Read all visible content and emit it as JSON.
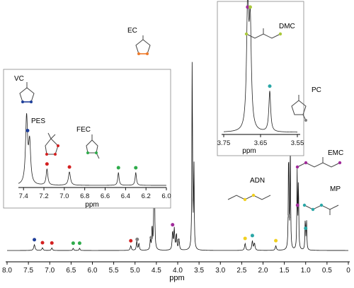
{
  "chart_data": {
    "type": "line",
    "title": "",
    "xlabel": "ppm",
    "xlim": [
      8.0,
      0.0
    ],
    "x_ticks": [
      "8.0",
      "7.5",
      "7.0",
      "6.5",
      "6.0",
      "5.5",
      "5.0",
      "4.5",
      "4.0",
      "3.5",
      "3.0",
      "2.5",
      "2.0",
      "1.5",
      "1.0",
      "0.5",
      "0"
    ],
    "peaks": [
      {
        "ppm": 7.36,
        "height": 0.025,
        "width": 0.018
      },
      {
        "ppm": 7.17,
        "height": 0.012,
        "width": 0.015
      },
      {
        "ppm": 6.95,
        "height": 0.011,
        "width": 0.015
      },
      {
        "ppm": 6.45,
        "height": 0.01,
        "width": 0.012
      },
      {
        "ppm": 6.3,
        "height": 0.01,
        "width": 0.012
      },
      {
        "ppm": 5.1,
        "height": 0.02,
        "width": 0.015
      },
      {
        "ppm": 4.96,
        "height": 0.04,
        "width": 0.012
      },
      {
        "ppm": 4.91,
        "height": 0.03,
        "width": 0.012
      },
      {
        "ppm": 4.64,
        "height": 0.05,
        "width": 0.01
      },
      {
        "ppm": 4.6,
        "height": 0.11,
        "width": 0.008
      },
      {
        "ppm": 4.55,
        "height": 0.64,
        "width": 0.008
      },
      {
        "ppm": 4.12,
        "height": 0.08,
        "width": 0.012
      },
      {
        "ppm": 4.08,
        "height": 0.09,
        "width": 0.012
      },
      {
        "ppm": 4.03,
        "height": 0.07,
        "width": 0.012
      },
      {
        "ppm": 3.97,
        "height": 0.05,
        "width": 0.012
      },
      {
        "ppm": 3.66,
        "height": 0.86,
        "width": 0.008
      },
      {
        "ppm": 3.62,
        "height": 0.38,
        "width": 0.008
      },
      {
        "ppm": 2.42,
        "height": 0.03,
        "width": 0.015
      },
      {
        "ppm": 2.25,
        "height": 0.04,
        "width": 0.015
      },
      {
        "ppm": 2.2,
        "height": 0.03,
        "width": 0.015
      },
      {
        "ppm": 1.7,
        "height": 0.02,
        "width": 0.015
      },
      {
        "ppm": 1.4,
        "height": 0.47,
        "width": 0.008
      },
      {
        "ppm": 1.36,
        "height": 0.44,
        "width": 0.008
      },
      {
        "ppm": 1.2,
        "height": 0.33,
        "width": 0.008
      },
      {
        "ppm": 1.17,
        "height": 0.31,
        "width": 0.008
      },
      {
        "ppm": 1.01,
        "height": 0.14,
        "width": 0.008
      },
      {
        "ppm": 0.98,
        "height": 0.13,
        "width": 0.008
      }
    ],
    "insets": [
      {
        "xlabel": "ppm",
        "xlim": [
          7.45,
          6.0
        ],
        "x_ticks": [
          "7.4",
          "7.2",
          "7.0",
          "6.8",
          "6.6",
          "6.4",
          "6.2",
          "6.0"
        ],
        "peaks": [
          {
            "ppm": 7.37,
            "height": 1.0,
            "width": 0.012
          },
          {
            "ppm": 7.34,
            "height": 0.6,
            "width": 0.012
          },
          {
            "ppm": 7.17,
            "height": 0.24,
            "width": 0.01
          },
          {
            "ppm": 6.95,
            "height": 0.2,
            "width": 0.012
          },
          {
            "ppm": 6.47,
            "height": 0.19,
            "width": 0.008
          },
          {
            "ppm": 6.3,
            "height": 0.19,
            "width": 0.008
          }
        ]
      },
      {
        "xlabel": "ppm",
        "xlim": [
          3.75,
          3.55
        ],
        "x_ticks": [
          "3.75",
          "3.65",
          "3.55"
        ],
        "peaks": [
          {
            "ppm": 3.685,
            "height": 1.0,
            "width": 0.0035
          },
          {
            "ppm": 3.678,
            "height": 0.82,
            "width": 0.0035
          },
          {
            "ppm": 3.625,
            "height": 0.33,
            "width": 0.003
          }
        ]
      }
    ],
    "compounds": [
      {
        "name": "VC",
        "color": "#1f3f9a"
      },
      {
        "name": "PES",
        "color": "#d42020"
      },
      {
        "name": "FEC",
        "color": "#2eab4a"
      },
      {
        "name": "EC",
        "color": "#ee7a2a"
      },
      {
        "name": "DMC",
        "color": "#aac83c"
      },
      {
        "name": "PC",
        "color": "#808080"
      },
      {
        "name": "EMC",
        "color": "#a02a9a"
      },
      {
        "name": "MP",
        "color": "#2aa7a7"
      },
      {
        "name": "ADN",
        "color": "#f0d020"
      }
    ],
    "peak_markers": [
      {
        "ppm": 7.36,
        "color": "#1f3f9a"
      },
      {
        "ppm": 7.17,
        "color": "#d42020"
      },
      {
        "ppm": 6.95,
        "color": "#d42020"
      },
      {
        "ppm": 6.45,
        "color": "#2eab4a"
      },
      {
        "ppm": 6.3,
        "color": "#2eab4a"
      },
      {
        "ppm": 5.1,
        "color": "#d42020"
      },
      {
        "ppm": 4.95,
        "color": "#808080"
      },
      {
        "ppm": 4.62,
        "color": "#808080"
      },
      {
        "ppm": 4.55,
        "color": "#ee7a2a"
      },
      {
        "ppm": 4.12,
        "color": "#a02a9a"
      },
      {
        "ppm": 4.0,
        "color": "#808080"
      },
      {
        "ppm": 2.42,
        "color": "#f0d020"
      },
      {
        "ppm": 2.25,
        "color": "#2aa7a7"
      },
      {
        "ppm": 1.7,
        "color": "#f0d020"
      },
      {
        "ppm": 1.38,
        "color": "#808080"
      },
      {
        "ppm": 1.19,
        "color": "#a02a9a"
      },
      {
        "ppm": 1.0,
        "color": "#2aa7a7"
      }
    ],
    "inset_markers": [
      [
        {
          "ppm": 7.36,
          "color": "#1f3f9a"
        },
        {
          "ppm": 7.17,
          "color": "#d42020"
        },
        {
          "ppm": 6.95,
          "color": "#d42020"
        },
        {
          "ppm": 6.47,
          "color": "#2eab4a"
        },
        {
          "ppm": 6.3,
          "color": "#2eab4a"
        }
      ],
      [
        {
          "ppm": 3.685,
          "color": "#a02a9a"
        },
        {
          "ppm": 3.678,
          "color": "#aac83c"
        },
        {
          "ppm": 3.625,
          "color": "#2aa7a7"
        }
      ]
    ],
    "grid": false
  }
}
